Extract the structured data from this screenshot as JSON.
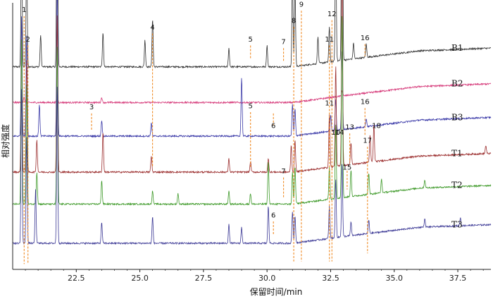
{
  "chart_data": {
    "type": "line",
    "title": "",
    "xlabel": "保留时间/min",
    "ylabel": "相对强度",
    "xlim": [
      20.0,
      38.8
    ],
    "x_ticks": [
      22.5,
      25.0,
      27.5,
      30.0,
      32.5,
      35.0,
      37.5
    ],
    "x_tick_labels": [
      "22.5",
      "25.0",
      "27.5",
      "30.0",
      "32.5",
      "35.0",
      "37.5"
    ],
    "grid": false,
    "legend": "none",
    "colors": {
      "B1": "#333333",
      "B2": "#d63a7a",
      "B3": "#3b3aa8",
      "T1": "#9c2f2f",
      "T2": "#3f9a2a",
      "T3": "#3d3a96",
      "marker": "#f08a24"
    },
    "series": [
      {
        "name": "B1",
        "baseline": 0.76,
        "drift": [
          [
            20.0,
            0.0
          ],
          [
            31.0,
            0.0
          ],
          [
            33.0,
            0.025
          ],
          [
            36.0,
            0.06
          ],
          [
            38.8,
            0.07
          ]
        ],
        "peaks": [
          [
            20.35,
            0.55
          ],
          [
            20.55,
            0.45
          ],
          [
            21.1,
            0.12
          ],
          [
            21.75,
            0.92
          ],
          [
            23.55,
            0.13
          ],
          [
            25.2,
            0.1
          ],
          [
            25.5,
            0.18
          ],
          [
            28.5,
            0.07
          ],
          [
            30.0,
            0.08
          ],
          [
            31.0,
            0.35
          ],
          [
            31.1,
            0.3
          ],
          [
            32.0,
            0.1
          ],
          [
            32.45,
            0.13
          ],
          [
            32.7,
            0.48
          ],
          [
            32.95,
            1.25
          ],
          [
            33.4,
            0.06
          ],
          [
            33.9,
            0.05
          ]
        ]
      },
      {
        "name": "B2",
        "baseline": 0.626,
        "drift": [
          [
            20.0,
            0.0
          ],
          [
            31.0,
            0.0
          ],
          [
            33.0,
            0.025
          ],
          [
            36.0,
            0.06
          ],
          [
            38.8,
            0.07
          ]
        ],
        "peaks": [
          [
            20.45,
            0.02
          ],
          [
            21.75,
            0.04
          ],
          [
            23.5,
            0.02
          ],
          [
            32.95,
            0.02
          ]
        ]
      },
      {
        "name": "B3",
        "baseline": 0.5,
        "drift": [
          [
            20.0,
            0.0
          ],
          [
            31.0,
            0.0
          ],
          [
            33.0,
            0.025
          ],
          [
            36.0,
            0.06
          ],
          [
            38.8,
            0.07
          ]
        ],
        "peaks": [
          [
            20.35,
            0.45
          ],
          [
            20.55,
            0.38
          ],
          [
            21.05,
            0.12
          ],
          [
            21.75,
            0.6
          ],
          [
            23.5,
            0.06
          ],
          [
            25.45,
            0.05
          ],
          [
            29.0,
            0.22
          ],
          [
            31.0,
            0.12
          ],
          [
            31.1,
            0.1
          ],
          [
            32.5,
            0.06
          ],
          [
            32.7,
            0.12
          ],
          [
            32.95,
            0.3
          ],
          [
            33.9,
            0.03
          ]
        ]
      },
      {
        "name": "T1",
        "baseline": 0.365,
        "drift": [
          [
            20.0,
            0.0
          ],
          [
            31.0,
            0.0
          ],
          [
            33.0,
            0.025
          ],
          [
            36.0,
            0.06
          ],
          [
            38.8,
            0.07
          ]
        ],
        "peaks": [
          [
            20.35,
            0.5
          ],
          [
            20.55,
            0.42
          ],
          [
            20.95,
            0.12
          ],
          [
            21.75,
            0.6
          ],
          [
            23.55,
            0.15
          ],
          [
            25.45,
            0.06
          ],
          [
            28.5,
            0.05
          ],
          [
            29.35,
            0.04
          ],
          [
            30.05,
            0.05
          ],
          [
            30.95,
            0.1
          ],
          [
            31.1,
            0.12
          ],
          [
            32.45,
            0.2
          ],
          [
            32.7,
            0.38
          ],
          [
            32.95,
            0.8
          ],
          [
            33.3,
            0.08
          ],
          [
            34.05,
            0.1
          ],
          [
            34.2,
            0.14
          ],
          [
            38.6,
            0.03
          ]
        ]
      },
      {
        "name": "T2",
        "baseline": 0.245,
        "drift": [
          [
            20.0,
            0.0
          ],
          [
            31.0,
            0.0
          ],
          [
            33.0,
            0.025
          ],
          [
            36.0,
            0.06
          ],
          [
            38.8,
            0.07
          ]
        ],
        "peaks": [
          [
            20.35,
            0.62
          ],
          [
            20.55,
            0.45
          ],
          [
            20.95,
            0.12
          ],
          [
            21.75,
            0.6
          ],
          [
            23.5,
            0.09
          ],
          [
            25.5,
            0.05
          ],
          [
            26.5,
            0.04
          ],
          [
            28.5,
            0.05
          ],
          [
            29.35,
            0.04
          ],
          [
            30.05,
            0.16
          ],
          [
            31.0,
            0.12
          ],
          [
            31.1,
            0.14
          ],
          [
            32.45,
            0.12
          ],
          [
            32.7,
            0.28
          ],
          [
            32.95,
            0.7
          ],
          [
            33.3,
            0.1
          ],
          [
            34.0,
            0.08
          ],
          [
            34.5,
            0.05
          ],
          [
            36.2,
            0.03
          ]
        ]
      },
      {
        "name": "T3",
        "baseline": 0.098,
        "drift": [
          [
            20.0,
            0.0
          ],
          [
            31.0,
            0.0
          ],
          [
            33.0,
            0.025
          ],
          [
            36.0,
            0.06
          ],
          [
            38.8,
            0.07
          ]
        ],
        "peaks": [
          [
            20.35,
            0.58
          ],
          [
            20.55,
            0.4
          ],
          [
            20.9,
            0.2
          ],
          [
            21.75,
            0.6
          ],
          [
            23.5,
            0.08
          ],
          [
            25.5,
            0.1
          ],
          [
            28.5,
            0.07
          ],
          [
            29.0,
            0.06
          ],
          [
            30.05,
            0.14
          ],
          [
            31.0,
            0.12
          ],
          [
            31.1,
            0.1
          ],
          [
            32.45,
            0.12
          ],
          [
            32.7,
            0.22
          ],
          [
            32.95,
            0.28
          ],
          [
            33.3,
            0.05
          ],
          [
            34.0,
            0.05
          ],
          [
            36.2,
            0.03
          ],
          [
            37.6,
            0.03
          ]
        ]
      }
    ],
    "markers": [
      {
        "x": 20.45,
        "label": "1",
        "label_y": 0.965,
        "top": 0.95,
        "bottom": 0.02
      },
      {
        "x": 20.6,
        "label": "2",
        "label_y": 0.855,
        "top": 0.84,
        "bottom": 0.02
      },
      {
        "x": 23.1,
        "label": "3",
        "label_y": 0.6,
        "top": 0.585,
        "bottom": 0.52
      },
      {
        "x": 25.5,
        "label": "4",
        "label_y": 0.9,
        "top": 0.885,
        "bottom": 0.385
      },
      {
        "x": 29.35,
        "label": "5",
        "label_y": 0.855,
        "top": 0.84,
        "bottom": 0.79
      },
      {
        "x": 29.35,
        "label": "5",
        "label_y": 0.605,
        "top": 0.59,
        "bottom": 0.385
      },
      {
        "x": 30.65,
        "label": "7",
        "label_y": 0.845,
        "top": 0.83,
        "bottom": 0.78
      },
      {
        "x": 30.65,
        "label": "7",
        "label_y": 0.36,
        "top": 0.345,
        "bottom": 0.27
      },
      {
        "x": 30.25,
        "label": "6",
        "label_y": 0.53,
        "top": 0.585,
        "bottom": 0.54
      },
      {
        "x": 30.25,
        "label": "6",
        "label_y": 0.195,
        "top": 0.18,
        "bottom": 0.13
      },
      {
        "x": 31.05,
        "label": "8",
        "label_y": 0.925,
        "top": 0.91,
        "bottom": 0.03
      },
      {
        "x": 31.35,
        "label": "9",
        "label_y": 0.985,
        "top": 0.97,
        "bottom": 0.03
      },
      {
        "x": 32.45,
        "label": "11",
        "label_y": 0.855,
        "top": 0.84,
        "bottom": 0.03
      },
      {
        "x": 32.45,
        "label": "11",
        "label_y": 0.615,
        "top": null,
        "bottom": null
      },
      {
        "x": 32.55,
        "label": "12",
        "label_y": 0.95,
        "top": 0.935,
        "bottom": 0.03
      },
      {
        "x": 32.7,
        "label": "10",
        "label_y": 0.505,
        "top": null,
        "bottom": null
      },
      {
        "x": 32.85,
        "label": "14",
        "label_y": 0.505,
        "top": null,
        "bottom": null
      },
      {
        "x": 33.25,
        "label": "13",
        "label_y": 0.525,
        "top": 0.51,
        "bottom": 0.4
      },
      {
        "x": 33.15,
        "label": "15",
        "label_y": 0.375,
        "top": 0.37,
        "bottom": 0.3
      },
      {
        "x": 33.85,
        "label": "16",
        "label_y": 0.86,
        "top": 0.845,
        "bottom": 0.8
      },
      {
        "x": 33.85,
        "label": "16",
        "label_y": 0.62,
        "top": 0.605,
        "bottom": 0.5
      },
      {
        "x": 33.95,
        "label": "17",
        "label_y": 0.475,
        "top": 0.46,
        "bottom": 0.06
      },
      {
        "x": 34.3,
        "label": "18",
        "label_y": 0.53,
        "top": null,
        "bottom": null
      }
    ]
  }
}
